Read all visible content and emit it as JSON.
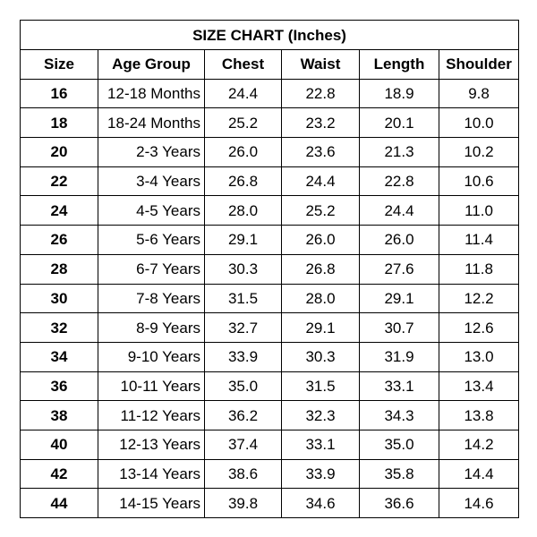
{
  "title": "SIZE CHART (Inches)",
  "headers": [
    "Size",
    "Age Group",
    "Chest",
    "Waist",
    "Length",
    "Shoulder"
  ],
  "rows": [
    [
      "16",
      "12-18 Months",
      "24.4",
      "22.8",
      "18.9",
      "9.8"
    ],
    [
      "18",
      "18-24 Months",
      "25.2",
      "23.2",
      "20.1",
      "10.0"
    ],
    [
      "20",
      "2-3 Years",
      "26.0",
      "23.6",
      "21.3",
      "10.2"
    ],
    [
      "22",
      "3-4 Years",
      "26.8",
      "24.4",
      "22.8",
      "10.6"
    ],
    [
      "24",
      "4-5 Years",
      "28.0",
      "25.2",
      "24.4",
      "11.0"
    ],
    [
      "26",
      "5-6 Years",
      "29.1",
      "26.0",
      "26.0",
      "11.4"
    ],
    [
      "28",
      "6-7 Years",
      "30.3",
      "26.8",
      "27.6",
      "11.8"
    ],
    [
      "30",
      "7-8 Years",
      "31.5",
      "28.0",
      "29.1",
      "12.2"
    ],
    [
      "32",
      "8-9 Years",
      "32.7",
      "29.1",
      "30.7",
      "12.6"
    ],
    [
      "34",
      "9-10 Years",
      "33.9",
      "30.3",
      "31.9",
      "13.0"
    ],
    [
      "36",
      "10-11 Years",
      "35.0",
      "31.5",
      "33.1",
      "13.4"
    ],
    [
      "38",
      "11-12 Years",
      "36.2",
      "32.3",
      "34.3",
      "13.8"
    ],
    [
      "40",
      "12-13 Years",
      "37.4",
      "33.1",
      "35.0",
      "14.2"
    ],
    [
      "42",
      "13-14 Years",
      "38.6",
      "33.9",
      "35.8",
      "14.4"
    ],
    [
      "44",
      "14-15 Years",
      "39.8",
      "34.6",
      "36.6",
      "14.6"
    ]
  ]
}
